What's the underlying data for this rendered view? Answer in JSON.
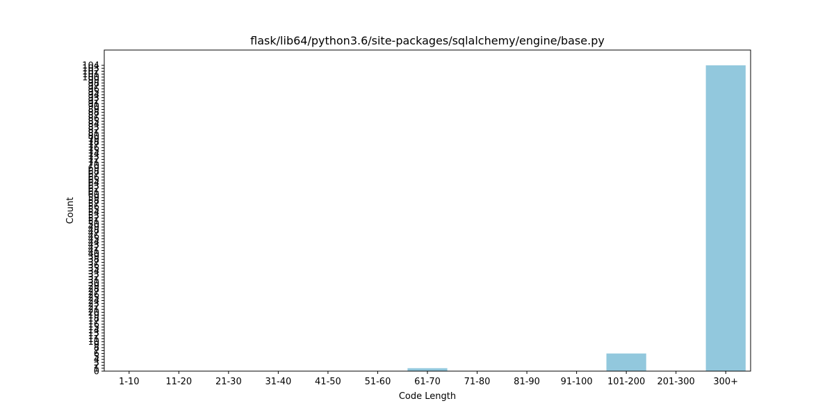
{
  "chart_data": {
    "type": "bar",
    "title": "flask/lib64/python3.6/site-packages/sqlalchemy/engine/base.py",
    "xlabel": "Code Length",
    "ylabel": "Count",
    "categories": [
      "1-10",
      "11-20",
      "21-30",
      "31-40",
      "41-50",
      "51-60",
      "61-70",
      "71-80",
      "81-90",
      "91-100",
      "101-200",
      "201-300",
      "300+"
    ],
    "values": [
      0,
      0,
      0,
      0,
      0,
      0,
      1,
      0,
      0,
      0,
      6,
      0,
      104
    ],
    "ylim": [
      0,
      109.2
    ],
    "yticks": [
      0,
      1,
      2,
      3,
      4,
      5,
      6,
      7,
      8,
      9,
      10,
      11,
      12,
      13,
      14,
      15,
      16,
      17,
      18,
      19,
      20,
      21,
      22,
      23,
      24,
      25,
      26,
      27,
      28,
      29,
      30,
      31,
      32,
      33,
      34,
      35,
      36,
      37,
      38,
      39,
      40,
      41,
      42,
      43,
      44,
      45,
      46,
      47,
      48,
      49,
      50,
      51,
      52,
      53,
      54,
      55,
      56,
      57,
      58,
      59,
      60,
      61,
      62,
      63,
      64,
      65,
      66,
      67,
      68,
      69,
      70,
      71,
      72,
      73,
      74,
      75,
      76,
      77,
      78,
      79,
      80,
      81,
      82,
      83,
      84,
      85,
      86,
      87,
      88,
      89,
      90,
      91,
      92,
      93,
      94,
      95,
      96,
      97,
      98,
      99,
      100,
      101,
      102,
      103,
      104
    ],
    "bar_color": "#92c8dd",
    "grid": false,
    "legend": "none"
  }
}
